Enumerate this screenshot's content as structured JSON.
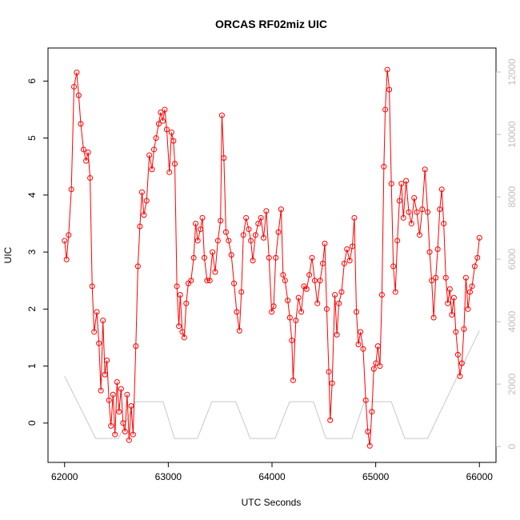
{
  "chart_data": {
    "type": "line",
    "title": "ORCAS RF02miz UIC",
    "x_label": "UTC Seconds",
    "y_label": "UIC",
    "xlim": [
      61840,
      66160
    ],
    "xticks": [
      62000,
      63000,
      64000,
      65000,
      66000
    ],
    "ylim": [
      -0.69,
      6.58
    ],
    "yticks": [
      0,
      1,
      2,
      3,
      4,
      5,
      6
    ],
    "y2lim": [
      -510,
      12770
    ],
    "y2ticks": [
      0,
      2000,
      4000,
      6000,
      8000,
      10000,
      12000
    ],
    "y2_color": "#bebebe",
    "series": [
      {
        "color": "#ff0000",
        "markers": true,
        "x": [
          62000,
          62019,
          62039,
          62065,
          62091,
          62117,
          62136,
          62156,
          62182,
          62207,
          62227,
          62246,
          62266,
          62285,
          62311,
          62331,
          62350,
          62370,
          62389,
          62408,
          62428,
          62447,
          62467,
          62486,
          62506,
          62525,
          62545,
          62564,
          62583,
          62603,
          62622,
          62642,
          62661,
          62687,
          62707,
          62726,
          62746,
          62765,
          62791,
          62817,
          62843,
          62862,
          62882,
          62908,
          62927,
          62947,
          62966,
          62985,
          63011,
          63031,
          63050,
          63063,
          63083,
          63102,
          63115,
          63135,
          63154,
          63173,
          63193,
          63219,
          63245,
          63264,
          63284,
          63310,
          63329,
          63348,
          63374,
          63400,
          63426,
          63452,
          63478,
          63504,
          63517,
          63536,
          63556,
          63582,
          63608,
          63634,
          63660,
          63686,
          63705,
          63724,
          63750,
          63776,
          63796,
          63815,
          63841,
          63867,
          63893,
          63919,
          63945,
          63971,
          63997,
          64016,
          64036,
          64062,
          64088,
          64107,
          64126,
          64152,
          64172,
          64191,
          64204,
          64230,
          64256,
          64282,
          64308,
          64334,
          64360,
          64386,
          64412,
          64438,
          64464,
          64490,
          64509,
          64528,
          64548,
          64561,
          64580,
          64606,
          64626,
          64645,
          64671,
          64697,
          64723,
          64749,
          64775,
          64794,
          64814,
          64833,
          64853,
          64879,
          64904,
          64924,
          64943,
          64963,
          64982,
          65002,
          65021,
          65041,
          65060,
          65079,
          65092,
          65112,
          65131,
          65151,
          65170,
          65190,
          65209,
          65229,
          65248,
          65267,
          65293,
          65319,
          65345,
          65371,
          65397,
          65423,
          65449,
          65475,
          65501,
          65520,
          65540,
          65559,
          65579,
          65598,
          65618,
          65637,
          65656,
          65676,
          65695,
          65715,
          65734,
          65754,
          65773,
          65793,
          65812,
          65831,
          65851,
          65870,
          65890,
          65909,
          65929,
          65955,
          65981,
          66000
        ],
        "values": [
          3.2,
          2.87,
          3.3,
          4.1,
          5.9,
          6.15,
          5.75,
          5.25,
          4.8,
          4.6,
          4.75,
          4.3,
          2.4,
          1.6,
          1.95,
          1.4,
          0.57,
          1.8,
          0.85,
          1.1,
          0.4,
          -0.05,
          0.5,
          -0.2,
          0.72,
          0.2,
          0.6,
          0.0,
          -0.15,
          0.5,
          -0.3,
          0.3,
          -0.2,
          1.35,
          2.75,
          3.45,
          4.05,
          3.65,
          3.9,
          4.7,
          4.45,
          4.8,
          5.0,
          5.25,
          5.45,
          5.3,
          5.5,
          5.15,
          4.4,
          5.1,
          4.95,
          4.55,
          2.4,
          1.7,
          2.25,
          1.6,
          1.5,
          2.1,
          2.45,
          2.5,
          2.9,
          3.5,
          3.2,
          3.4,
          3.6,
          2.9,
          2.5,
          2.5,
          3.0,
          2.65,
          3.2,
          3.55,
          5.4,
          4.65,
          3.35,
          3.2,
          2.95,
          2.45,
          1.95,
          1.62,
          2.3,
          3.3,
          3.6,
          3.4,
          3.2,
          2.85,
          3.3,
          3.5,
          3.6,
          3.25,
          3.72,
          2.9,
          1.95,
          2.05,
          2.9,
          3.35,
          3.75,
          2.6,
          2.5,
          2.15,
          1.85,
          1.45,
          0.75,
          1.8,
          2.2,
          1.95,
          2.4,
          2.35,
          2.6,
          2.9,
          2.5,
          2.1,
          2.5,
          2.8,
          3.15,
          2.0,
          0.9,
          0.05,
          0.7,
          2.25,
          1.55,
          2.1,
          2.3,
          2.8,
          3.05,
          2.85,
          3.1,
          3.6,
          1.95,
          1.38,
          1.6,
          1.3,
          0.4,
          -0.15,
          -0.4,
          0.2,
          0.95,
          1.05,
          1.35,
          1.0,
          2.25,
          4.5,
          5.5,
          6.2,
          5.85,
          4.2,
          2.75,
          2.3,
          3.2,
          3.9,
          4.2,
          3.6,
          4.25,
          3.7,
          3.5,
          3.95,
          3.7,
          3.3,
          3.75,
          4.45,
          3.7,
          3.0,
          2.5,
          1.85,
          2.55,
          3.05,
          3.75,
          4.1,
          3.5,
          2.55,
          2.1,
          2.35,
          1.9,
          2.2,
          1.6,
          1.2,
          0.82,
          1.05,
          1.65,
          2.55,
          2.0,
          2.3,
          2.4,
          2.75,
          2.9,
          3.25
        ]
      },
      {
        "color": "#c8c8c8",
        "axis": "y2",
        "markers": false,
        "x": [
          62000,
          62300,
          62520,
          62680,
          62950,
          63060,
          63280,
          63420,
          63650,
          63790,
          64030,
          64170,
          64400,
          64520,
          64770,
          64890,
          65150,
          65280,
          65500,
          66000
        ],
        "values": [
          2250,
          256,
          256,
          1436,
          1436,
          256,
          256,
          1436,
          1436,
          256,
          256,
          1436,
          1436,
          256,
          256,
          1436,
          1436,
          256,
          256,
          3718
        ]
      }
    ]
  }
}
